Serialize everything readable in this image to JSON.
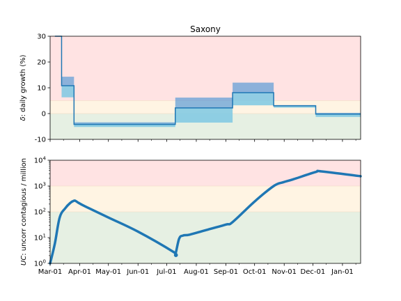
{
  "chart_data": [
    {
      "type": "line",
      "title": "Saxony",
      "ylabel_symbol": "δ",
      "ylabel_rest": ": daily growth (%)",
      "ylim": [
        -10,
        30
      ],
      "yticks": [
        -10,
        0,
        10,
        20,
        30
      ],
      "xlim": [
        "2020-03-01",
        "2021-01-20"
      ],
      "zones": [
        {
          "from": 5,
          "to": 30,
          "color": "#ffe3e3"
        },
        {
          "from": 0,
          "to": 5,
          "color": "#fff4e3"
        },
        {
          "from": -10,
          "to": 0,
          "color": "#e6f0e3"
        }
      ],
      "segments": [
        {
          "start": "2020-03-06",
          "end": "2020-03-13",
          "value": 30,
          "low": 30,
          "high": 30
        },
        {
          "start": "2020-03-13",
          "end": "2020-03-26",
          "value": 10.8,
          "low": 6.3,
          "high": 14.3
        },
        {
          "start": "2020-03-26",
          "end": "2020-07-10",
          "value": -4.2,
          "low": -5.2,
          "high": -3.4
        },
        {
          "start": "2020-07-10",
          "end": "2020-09-08",
          "value": 2.2,
          "low": -3.5,
          "high": 6.2
        },
        {
          "start": "2020-09-08",
          "end": "2020-10-21",
          "value": 8.1,
          "low": 3.2,
          "high": 12.0
        },
        {
          "start": "2020-10-21",
          "end": "2020-12-04",
          "value": 3.0,
          "low": 2.3,
          "high": 3.3
        },
        {
          "start": "2020-12-04",
          "end": "2021-01-20",
          "value": -0.2,
          "low": -1.3,
          "high": 0.3
        }
      ],
      "line_color": "#1f77b4",
      "band_colors": [
        "#5b9bd5",
        "#7ec8e3"
      ]
    },
    {
      "type": "line",
      "ylabel_symbol": "UC",
      "ylabel_rest": ": uncorr contagious / million",
      "yscale": "log",
      "ylim": [
        1,
        10000
      ],
      "yticks": [
        {
          "value": 1,
          "base": "10",
          "exp": "0"
        },
        {
          "value": 10,
          "base": "10",
          "exp": "1"
        },
        {
          "value": 100,
          "base": "10",
          "exp": "2"
        },
        {
          "value": 1000,
          "base": "10",
          "exp": "3"
        },
        {
          "value": 10000,
          "base": "10",
          "exp": "4"
        }
      ],
      "xlim": [
        "2020-03-01",
        "2021-01-20"
      ],
      "zones": [
        {
          "from": 1000,
          "to": 10000,
          "color": "#ffe3e3"
        },
        {
          "from": 100,
          "to": 1000,
          "color": "#fff4e3"
        },
        {
          "from": 1,
          "to": 100,
          "color": "#e6f0e3"
        }
      ],
      "x": [
        "2020-03-01",
        "2020-03-06",
        "2020-03-11",
        "2020-03-17",
        "2020-03-22",
        "2020-03-26",
        "2020-03-28",
        "2020-03-31",
        "2020-04-07",
        "2020-05-01",
        "2020-06-01",
        "2020-07-08",
        "2020-07-10",
        "2020-07-14",
        "2020-07-18",
        "2020-07-25",
        "2020-08-10",
        "2020-09-01",
        "2020-09-08",
        "2020-10-01",
        "2020-10-21",
        "2020-10-31",
        "2020-11-10",
        "2020-12-04",
        "2020-12-10",
        "2021-01-20"
      ],
      "values": [
        1,
        6,
        60,
        140,
        220,
        270,
        260,
        220,
        160,
        60,
        17,
        2.8,
        2.2,
        9,
        12,
        13,
        19,
        32,
        40,
        250,
        1000,
        1400,
        1800,
        3500,
        3700,
        2400
      ],
      "line_color": "#1f77b4"
    }
  ],
  "xticks": [
    {
      "date": "2020-03-01",
      "label": "Mar-01"
    },
    {
      "date": "2020-04-01",
      "label": "Apr-01"
    },
    {
      "date": "2020-05-01",
      "label": "May-01"
    },
    {
      "date": "2020-06-01",
      "label": "Jun-01"
    },
    {
      "date": "2020-07-01",
      "label": "Jul-01"
    },
    {
      "date": "2020-08-01",
      "label": "Aug-01"
    },
    {
      "date": "2020-09-01",
      "label": "Sep-01"
    },
    {
      "date": "2020-10-01",
      "label": "Oct-01"
    },
    {
      "date": "2020-11-01",
      "label": "Nov-01"
    },
    {
      "date": "2020-12-01",
      "label": "Dec-01"
    },
    {
      "date": "2021-01-01",
      "label": "Jan-01"
    }
  ],
  "minor_xticks": [
    "2020-03-15",
    "2020-04-15",
    "2020-05-15",
    "2020-06-15",
    "2020-07-15",
    "2020-08-15",
    "2020-09-15",
    "2020-10-15",
    "2020-11-15",
    "2020-12-15",
    "2021-01-15"
  ]
}
